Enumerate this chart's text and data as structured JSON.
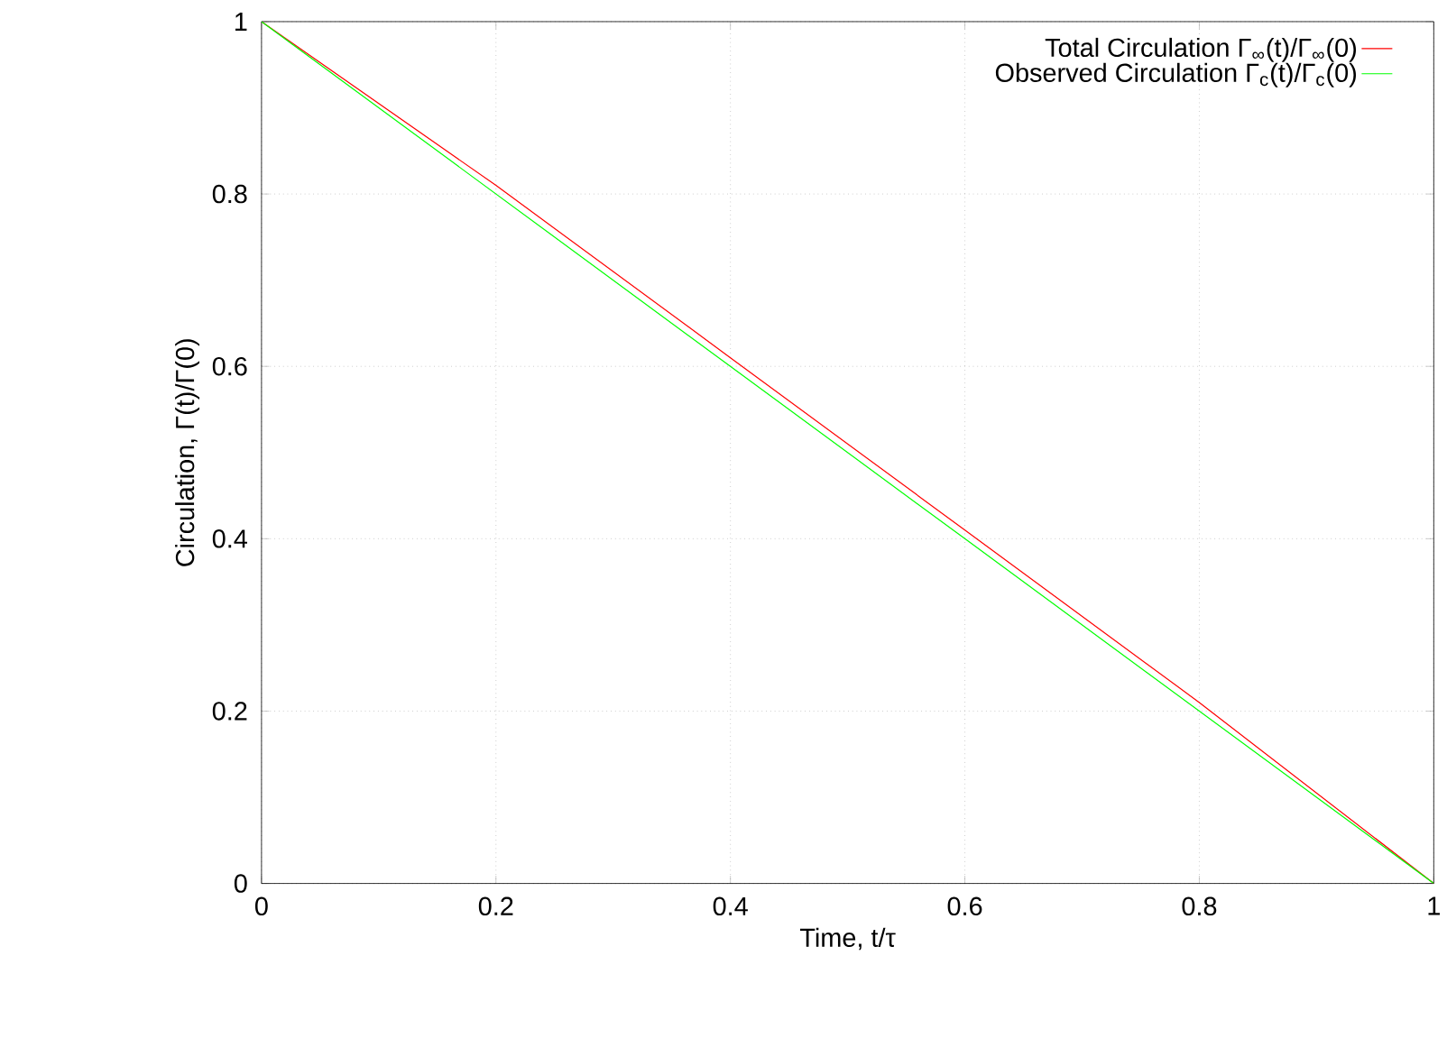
{
  "chart_data": {
    "type": "line",
    "xlabel": "Time, t/τ",
    "ylabel": "Circulation, Γ(t)/Γ(0)",
    "x": [
      0,
      0.2,
      0.4,
      0.6,
      0.8,
      1
    ],
    "series": [
      {
        "name": "Total Circulation Γ$_{∞}$(t)/Γ$_{∞}$(0)",
        "color": "#ff0000",
        "values": [
          1,
          0.81,
          0.61,
          0.41,
          0.21,
          0
        ]
      },
      {
        "name": "Observed Circulation Γ$_{c}$(t)/Γ$_{c}$(0)",
        "color": "#00ff00",
        "values": [
          1,
          0.8,
          0.6,
          0.4,
          0.2,
          0
        ]
      }
    ],
    "xlim": [
      0,
      1
    ],
    "ylim": [
      0,
      1
    ],
    "xticks": [
      0,
      0.2,
      0.4,
      0.6,
      0.8,
      1
    ],
    "yticks": [
      0,
      0.2,
      0.4,
      0.6,
      0.8,
      1
    ],
    "grid": true,
    "legend": "top right",
    "marker": "none",
    "line_style": "solid"
  }
}
